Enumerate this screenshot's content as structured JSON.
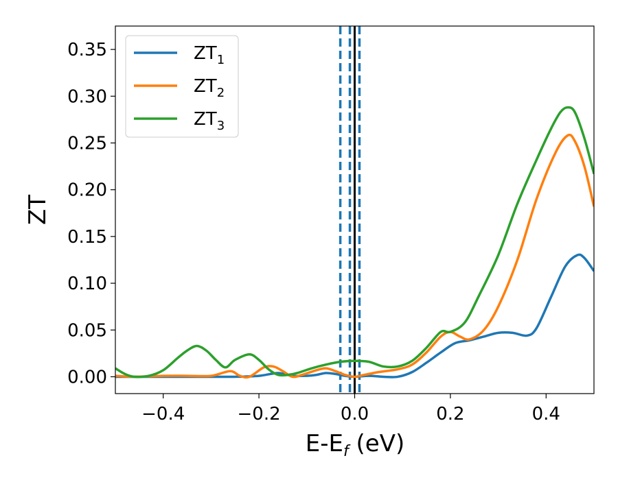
{
  "chart_data": {
    "type": "line",
    "xlabel": {
      "main": "E-E",
      "sub": "f",
      "unit": " (eV)"
    },
    "ylabel": "ZT",
    "xlim": [
      -0.5,
      0.5
    ],
    "ylim": [
      -0.018,
      0.375
    ],
    "x_ticks": [
      -0.4,
      -0.2,
      0.0,
      0.2,
      0.4
    ],
    "x_tick_labels": [
      "−0.4",
      "−0.2",
      "0.0",
      "0.2",
      "0.4"
    ],
    "y_ticks": [
      0.0,
      0.05,
      0.1,
      0.15,
      0.2,
      0.25,
      0.3,
      0.35
    ],
    "y_tick_labels": [
      "0.00",
      "0.05",
      "0.10",
      "0.15",
      "0.20",
      "0.25",
      "0.30",
      "0.35"
    ],
    "legend_position": "top-left",
    "grid": false,
    "vlines": [
      {
        "x": -0.03,
        "style": "dashed",
        "color": "#1f77b4"
      },
      {
        "x": -0.01,
        "style": "dashed",
        "color": "#1f77b4"
      },
      {
        "x": 0.01,
        "style": "dashed",
        "color": "#1f77b4"
      },
      {
        "x": 0.0,
        "style": "solid",
        "color": "#000000"
      }
    ],
    "series": [
      {
        "name": "ZT",
        "sub": "1",
        "color": "#1f77b4",
        "points": [
          [
            -0.5,
            0.0
          ],
          [
            -0.45,
            0.0
          ],
          [
            -0.4,
            0.0
          ],
          [
            -0.35,
            0.0
          ],
          [
            -0.3,
            0.0
          ],
          [
            -0.25,
            0.0
          ],
          [
            -0.2,
            0.001
          ],
          [
            -0.16,
            0.004
          ],
          [
            -0.13,
            0.001
          ],
          [
            -0.1,
            0.001
          ],
          [
            -0.08,
            0.002
          ],
          [
            -0.06,
            0.004
          ],
          [
            -0.04,
            0.003
          ],
          [
            -0.02,
            0.001
          ],
          [
            0.0,
            0.0
          ],
          [
            0.03,
            0.001
          ],
          [
            0.06,
            0.0
          ],
          [
            0.09,
            0.0
          ],
          [
            0.12,
            0.005
          ],
          [
            0.15,
            0.015
          ],
          [
            0.18,
            0.026
          ],
          [
            0.21,
            0.036
          ],
          [
            0.24,
            0.039
          ],
          [
            0.27,
            0.043
          ],
          [
            0.3,
            0.047
          ],
          [
            0.33,
            0.047
          ],
          [
            0.36,
            0.044
          ],
          [
            0.38,
            0.052
          ],
          [
            0.41,
            0.085
          ],
          [
            0.44,
            0.118
          ],
          [
            0.465,
            0.13
          ],
          [
            0.48,
            0.127
          ],
          [
            0.5,
            0.113
          ]
        ]
      },
      {
        "name": "ZT",
        "sub": "2",
        "color": "#ff7f0e",
        "points": [
          [
            -0.5,
            0.001
          ],
          [
            -0.46,
            0.0
          ],
          [
            -0.4,
            0.001
          ],
          [
            -0.35,
            0.001
          ],
          [
            -0.3,
            0.001
          ],
          [
            -0.26,
            0.006
          ],
          [
            -0.24,
            0.001
          ],
          [
            -0.22,
            0.0
          ],
          [
            -0.19,
            0.01
          ],
          [
            -0.17,
            0.011
          ],
          [
            -0.15,
            0.006
          ],
          [
            -0.13,
            0.0
          ],
          [
            -0.11,
            0.002
          ],
          [
            -0.08,
            0.007
          ],
          [
            -0.06,
            0.009
          ],
          [
            -0.04,
            0.006
          ],
          [
            -0.02,
            0.002
          ],
          [
            0.0,
            0.0
          ],
          [
            0.02,
            0.002
          ],
          [
            0.05,
            0.005
          ],
          [
            0.09,
            0.008
          ],
          [
            0.12,
            0.013
          ],
          [
            0.15,
            0.026
          ],
          [
            0.18,
            0.043
          ],
          [
            0.2,
            0.048
          ],
          [
            0.22,
            0.043
          ],
          [
            0.24,
            0.04
          ],
          [
            0.27,
            0.05
          ],
          [
            0.3,
            0.075
          ],
          [
            0.34,
            0.125
          ],
          [
            0.38,
            0.19
          ],
          [
            0.42,
            0.24
          ],
          [
            0.445,
            0.258
          ],
          [
            0.46,
            0.252
          ],
          [
            0.48,
            0.225
          ],
          [
            0.5,
            0.182
          ]
        ]
      },
      {
        "name": "ZT",
        "sub": "3",
        "color": "#2ca02c",
        "points": [
          [
            -0.5,
            0.009
          ],
          [
            -0.48,
            0.003
          ],
          [
            -0.46,
            0.0
          ],
          [
            -0.43,
            0.001
          ],
          [
            -0.4,
            0.007
          ],
          [
            -0.37,
            0.02
          ],
          [
            -0.35,
            0.028
          ],
          [
            -0.33,
            0.033
          ],
          [
            -0.31,
            0.028
          ],
          [
            -0.29,
            0.018
          ],
          [
            -0.27,
            0.01
          ],
          [
            -0.25,
            0.018
          ],
          [
            -0.22,
            0.024
          ],
          [
            -0.2,
            0.018
          ],
          [
            -0.18,
            0.008
          ],
          [
            -0.16,
            0.002
          ],
          [
            -0.14,
            0.002
          ],
          [
            -0.12,
            0.004
          ],
          [
            -0.09,
            0.009
          ],
          [
            -0.06,
            0.013
          ],
          [
            -0.03,
            0.016
          ],
          [
            0.0,
            0.017
          ],
          [
            0.03,
            0.016
          ],
          [
            0.06,
            0.011
          ],
          [
            0.09,
            0.011
          ],
          [
            0.12,
            0.017
          ],
          [
            0.15,
            0.031
          ],
          [
            0.18,
            0.048
          ],
          [
            0.2,
            0.048
          ],
          [
            0.23,
            0.058
          ],
          [
            0.26,
            0.087
          ],
          [
            0.3,
            0.13
          ],
          [
            0.34,
            0.185
          ],
          [
            0.38,
            0.232
          ],
          [
            0.41,
            0.265
          ],
          [
            0.43,
            0.283
          ],
          [
            0.445,
            0.288
          ],
          [
            0.46,
            0.283
          ],
          [
            0.48,
            0.255
          ],
          [
            0.5,
            0.217
          ]
        ]
      }
    ]
  }
}
